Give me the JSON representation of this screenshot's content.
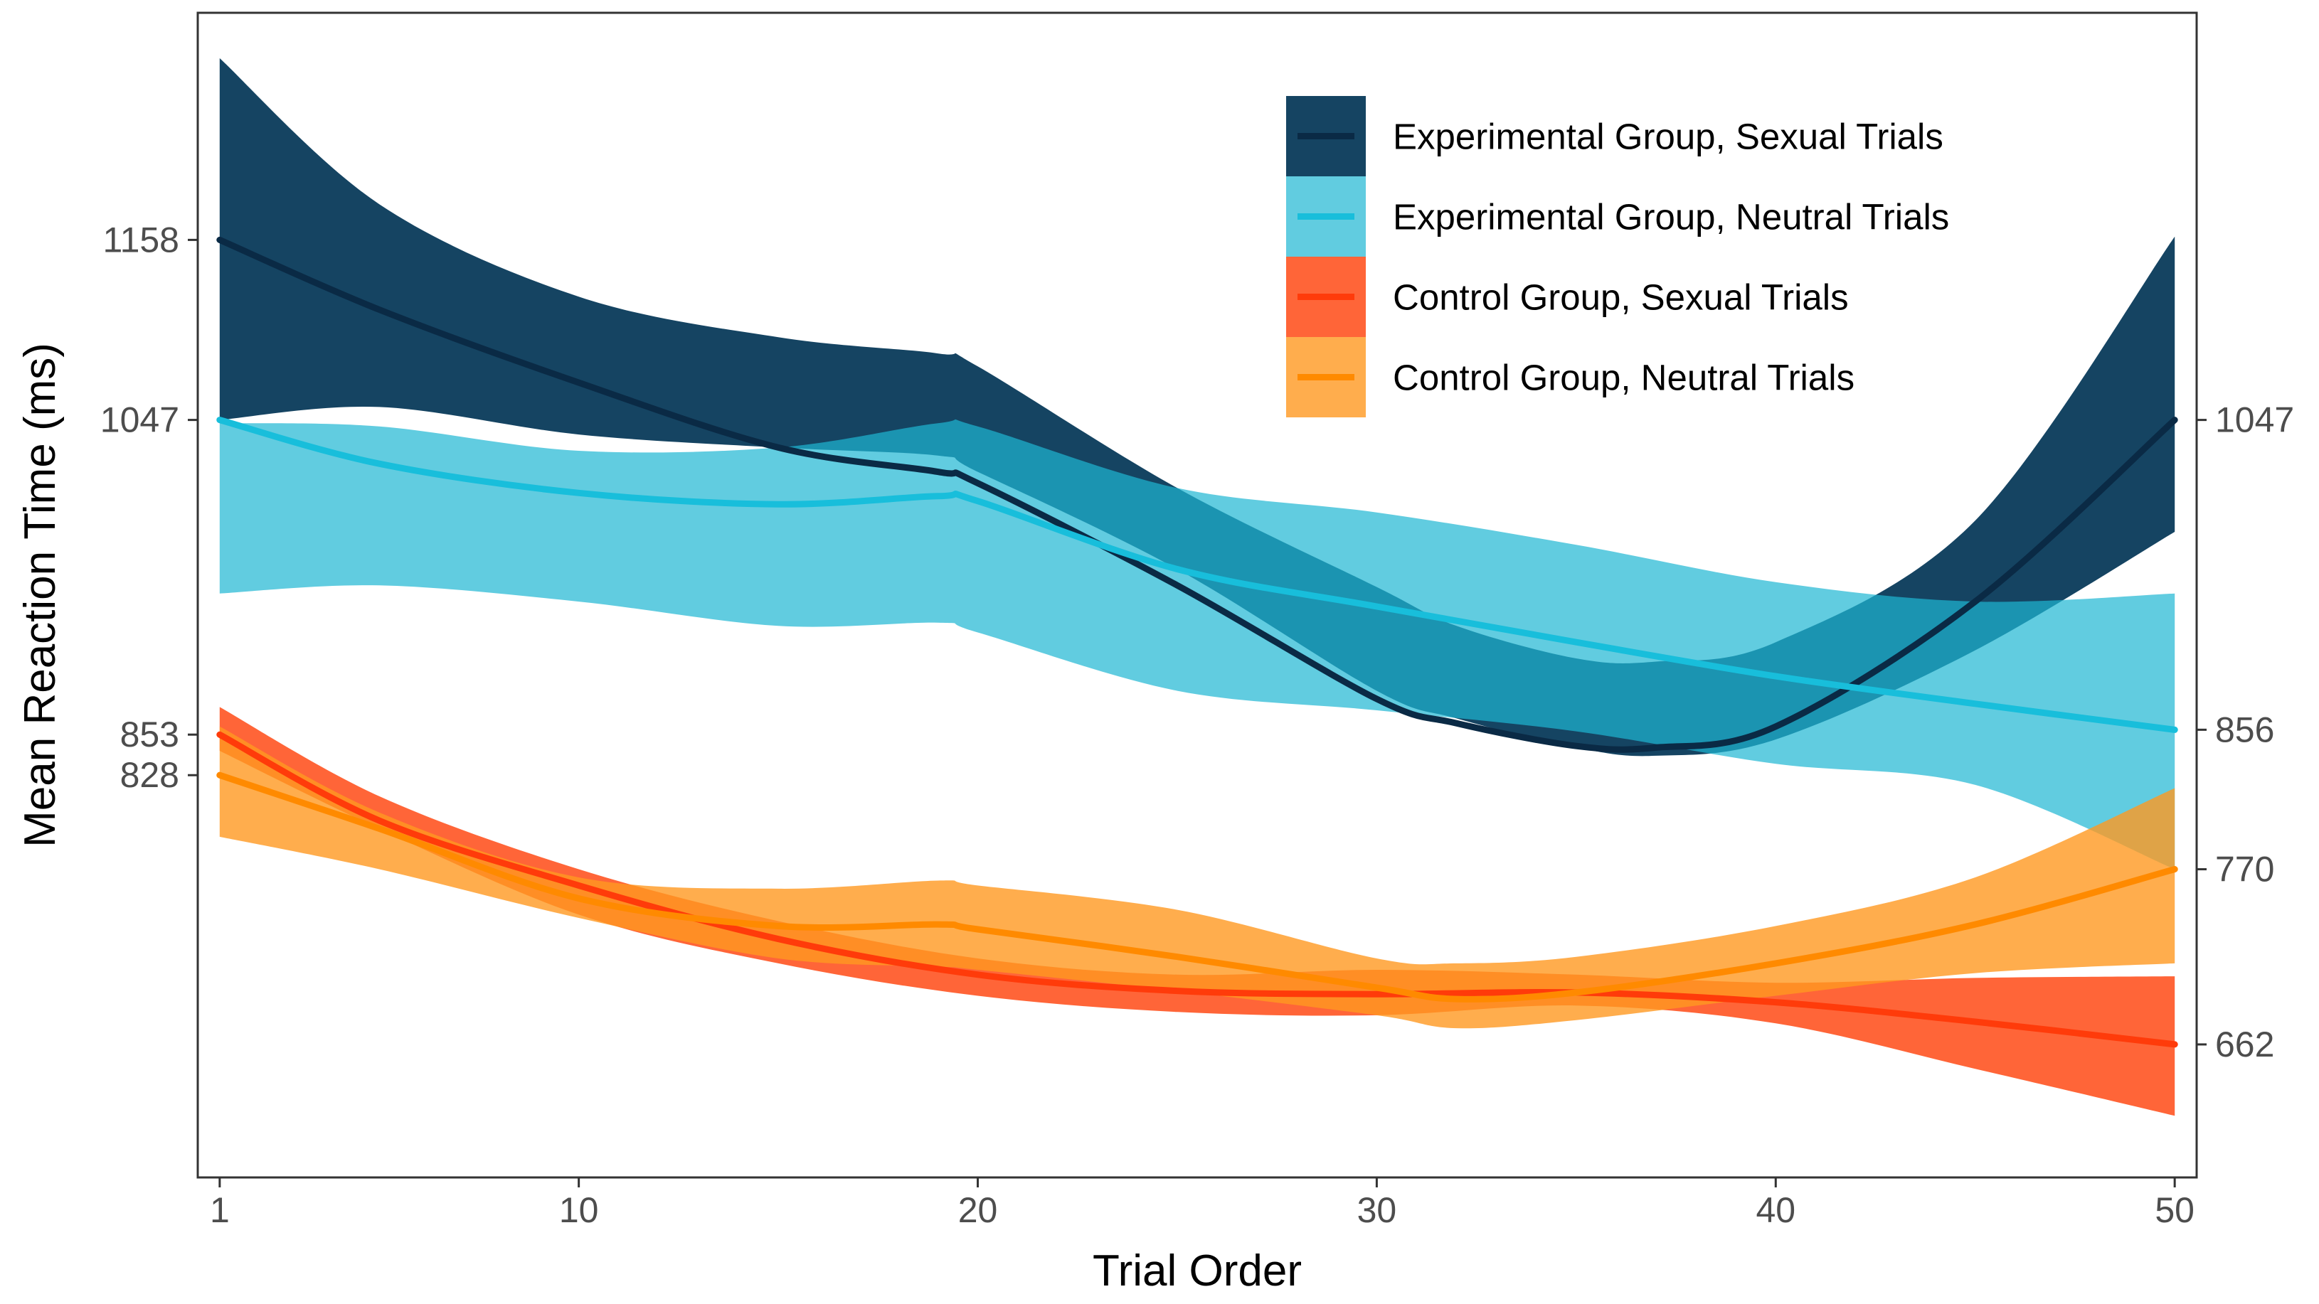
{
  "chart_data": {
    "type": "line",
    "title": "",
    "xlabel": "Trial Order",
    "ylabel": "Mean Reaction Time (ms)",
    "xlim": [
      0.45,
      50.55
    ],
    "ylim": [
      580,
      1298
    ],
    "x_ticks": [
      1,
      10,
      20,
      30,
      40,
      50
    ],
    "y_ticks_left": [
      {
        "value": 1158,
        "label": "1158"
      },
      {
        "value": 1047,
        "label": "1047"
      },
      {
        "value": 853,
        "label": "853"
      },
      {
        "value": 828,
        "label": "828"
      }
    ],
    "y_ticks_right": [
      {
        "value": 1047,
        "label": "1047"
      },
      {
        "value": 856,
        "label": "856"
      },
      {
        "value": 770,
        "label": "770"
      },
      {
        "value": 662,
        "label": "662"
      }
    ],
    "grid": false,
    "legend_position": "top-right",
    "series": [
      {
        "name": "Experimental Group, Sexual Trials",
        "line_color": "#0a2a45",
        "band_color": "#10405f",
        "band_opacity": 0.98,
        "x": [
          1,
          5,
          10,
          15,
          19,
          20,
          25,
          30,
          32,
          35,
          37,
          40,
          45,
          50
        ],
        "y": [
          1158,
          1115,
          1070,
          1030,
          1015,
          1008,
          945,
          875,
          860,
          846,
          845,
          858,
          935,
          1047
        ],
        "lower": [
          1047,
          1055,
          1038,
          1030,
          1025,
          1015,
          955,
          880,
          863,
          845,
          840,
          850,
          905,
          978
        ],
        "upper": [
          1270,
          1180,
          1123,
          1098,
          1088,
          1080,
          1005,
          944,
          920,
          900,
          898,
          910,
          985,
          1160
        ]
      },
      {
        "name": "Experimental Group, Neutral Trials",
        "line_color": "#18bedb",
        "band_color": "#1eb6d3",
        "band_opacity": 0.7,
        "x": [
          1,
          5,
          10,
          15,
          19,
          20,
          25,
          30,
          35,
          40,
          45,
          50
        ],
        "y": [
          1047,
          1020,
          1002,
          995,
          1000,
          997,
          955,
          932,
          910,
          889,
          872,
          856
        ],
        "lower": [
          940,
          945,
          935,
          920,
          922,
          916,
          880,
          868,
          855,
          835,
          822,
          770
        ],
        "upper": [
          1045,
          1043,
          1028,
          1030,
          1045,
          1043,
          1005,
          990,
          970,
          947,
          935,
          940
        ]
      },
      {
        "name": "Control Group, Sexual Trials",
        "line_color": "#ff3b0a",
        "band_color": "#ff4a15",
        "band_opacity": 0.85,
        "x": [
          1,
          5,
          10,
          15,
          20,
          25,
          30,
          35,
          40,
          45,
          50
        ],
        "y": [
          853,
          800,
          760,
          727,
          705,
          695,
          693,
          694,
          688,
          676,
          662
        ],
        "lower": [
          843,
          795,
          742,
          712,
          692,
          682,
          680,
          686,
          675,
          647,
          618
        ],
        "upper": [
          870,
          815,
          770,
          738,
          715,
          705,
          708,
          705,
          700,
          703,
          704
        ]
      },
      {
        "name": "Control Group, Neutral Trials",
        "line_color": "#ff8a00",
        "band_color": "#ff9820",
        "band_opacity": 0.8,
        "x": [
          1,
          5,
          10,
          15,
          19,
          20,
          25,
          30,
          32,
          35,
          40,
          45,
          50
        ],
        "y": [
          828,
          795,
          752,
          735,
          736,
          733,
          716,
          697,
          690,
          694,
          712,
          736,
          770
        ],
        "lower": [
          790,
          770,
          740,
          715,
          710,
          708,
          695,
          680,
          672,
          677,
          692,
          706,
          712
        ],
        "upper": [
          858,
          805,
          765,
          758,
          763,
          760,
          745,
          715,
          712,
          716,
          735,
          765,
          820
        ]
      }
    ]
  }
}
